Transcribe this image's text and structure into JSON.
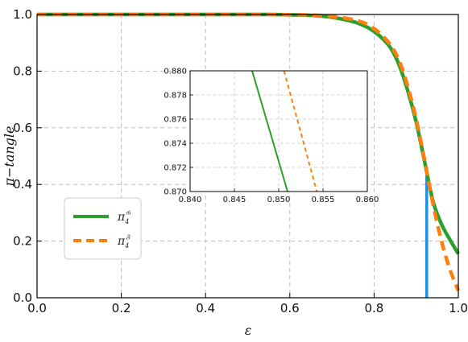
{
  "chart_data": {
    "type": "line",
    "xlabel": "ε",
    "ylabel": "π−tangle",
    "xlim": [
      0,
      1
    ],
    "ylim": [
      0,
      1
    ],
    "xticks": [
      "0.0",
      "0.2",
      "0.4",
      "0.6",
      "0.8",
      "1.0"
    ],
    "yticks": [
      "0.0",
      "0.2",
      "0.4",
      "0.6",
      "0.8",
      "1.0"
    ],
    "grid": true,
    "legend_position": "lower-left",
    "series": [
      {
        "name": "π4^𝔊",
        "label_main": "π",
        "label_sub": "4",
        "label_sup": "𝔊",
        "color": "#2ca02c",
        "style": "solid",
        "x": [
          0,
          0.1,
          0.2,
          0.3,
          0.4,
          0.5,
          0.55,
          0.6,
          0.65,
          0.7,
          0.75,
          0.78,
          0.8,
          0.82,
          0.84,
          0.86,
          0.88,
          0.9,
          0.92,
          0.94,
          0.96,
          0.98,
          1.0
        ],
        "y": [
          1.0,
          1.0,
          1.0,
          1.0,
          1.0,
          1.0,
          1.0,
          0.999,
          0.997,
          0.99,
          0.975,
          0.958,
          0.94,
          0.915,
          0.88,
          0.82,
          0.73,
          0.62,
          0.48,
          0.34,
          0.26,
          0.205,
          0.155
        ]
      },
      {
        "name": "π4^𝔉",
        "label_main": "π",
        "label_sub": "4",
        "label_sup": "𝔉",
        "color": "#ff7f0e",
        "style": "dashed",
        "x": [
          0,
          0.1,
          0.2,
          0.3,
          0.4,
          0.5,
          0.55,
          0.6,
          0.65,
          0.7,
          0.75,
          0.78,
          0.8,
          0.82,
          0.84,
          0.86,
          0.88,
          0.9,
          0.92,
          0.94,
          0.96,
          0.98,
          1.0
        ],
        "y": [
          1.0,
          1.0,
          1.0,
          1.0,
          1.0,
          1.0,
          1.0,
          0.999,
          0.998,
          0.993,
          0.982,
          0.968,
          0.95,
          0.925,
          0.89,
          0.835,
          0.745,
          0.63,
          0.485,
          0.33,
          0.2,
          0.1,
          0.025
        ]
      }
    ],
    "vertical_marker": {
      "x": 0.925,
      "y_top": 0.46,
      "color": "#1f8fe0"
    },
    "inset": {
      "type": "line",
      "xlim": [
        0.84,
        0.86
      ],
      "ylim": [
        0.87,
        0.88
      ],
      "xticks": [
        "0.840",
        "0.845",
        "0.850",
        "0.855",
        "0.860"
      ],
      "yticks": [
        "0.870",
        "0.872",
        "0.874",
        "0.876",
        "0.878",
        "0.880"
      ],
      "series": [
        {
          "name": "π4^𝔊",
          "color": "#2ca02c",
          "style": "solid",
          "x": [
            0.847,
            0.851
          ],
          "y": [
            0.88,
            0.87
          ]
        },
        {
          "name": "π4^𝔉",
          "color": "#ff7f0e",
          "style": "dashed",
          "x": [
            0.8506,
            0.8543
          ],
          "y": [
            0.88,
            0.87
          ]
        }
      ]
    }
  }
}
